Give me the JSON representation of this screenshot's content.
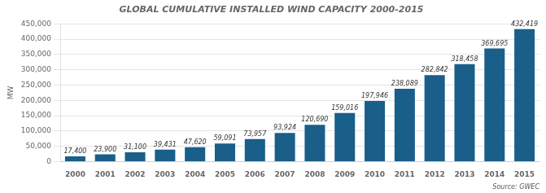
{
  "chart_data": {
    "type": "bar",
    "title": "GLOBAL CUMULATIVE INSTALLED WIND CAPACITY 2000-2015",
    "ylabel": "MW",
    "annotations": [
      "Source: GWEC"
    ],
    "categories": [
      "2000",
      "2001",
      "2002",
      "2003",
      "2004",
      "2005",
      "2006",
      "2007",
      "2008",
      "2009",
      "2010",
      "2011",
      "2012",
      "2013",
      "2014",
      "2015"
    ],
    "values": [
      17400,
      23900,
      31100,
      39431,
      47620,
      59091,
      73957,
      93924,
      120690,
      159016,
      197946,
      238089,
      282842,
      318458,
      369695,
      432419
    ],
    "value_labels": [
      "17,400",
      "23,900",
      "31,100",
      "39,431",
      "47,620",
      "59,091",
      "73,957",
      "93,924",
      "120,690",
      "159,016",
      "197,946",
      "238,089",
      "282,842",
      "318,458",
      "369,695",
      "432,419"
    ],
    "data_labels": true,
    "color": "#1a5e8a",
    "ylim": [
      0,
      450000
    ],
    "yticks": [
      0,
      {
        "value": 50000,
        "label": "50,000"
      },
      {
        "value": 100000,
        "label": "100,000"
      },
      {
        "value": 150000,
        "label": "150,000"
      },
      {
        "value": 200000,
        "label": "200,000"
      },
      {
        "value": 250000,
        "label": "250,000"
      },
      {
        "value": 300000,
        "label": "300,000"
      },
      {
        "value": 350000,
        "label": "350,000"
      },
      {
        "value": 400000,
        "label": "400,000"
      },
      {
        "value": 450000,
        "label": "450,000"
      }
    ],
    "grid": true
  }
}
